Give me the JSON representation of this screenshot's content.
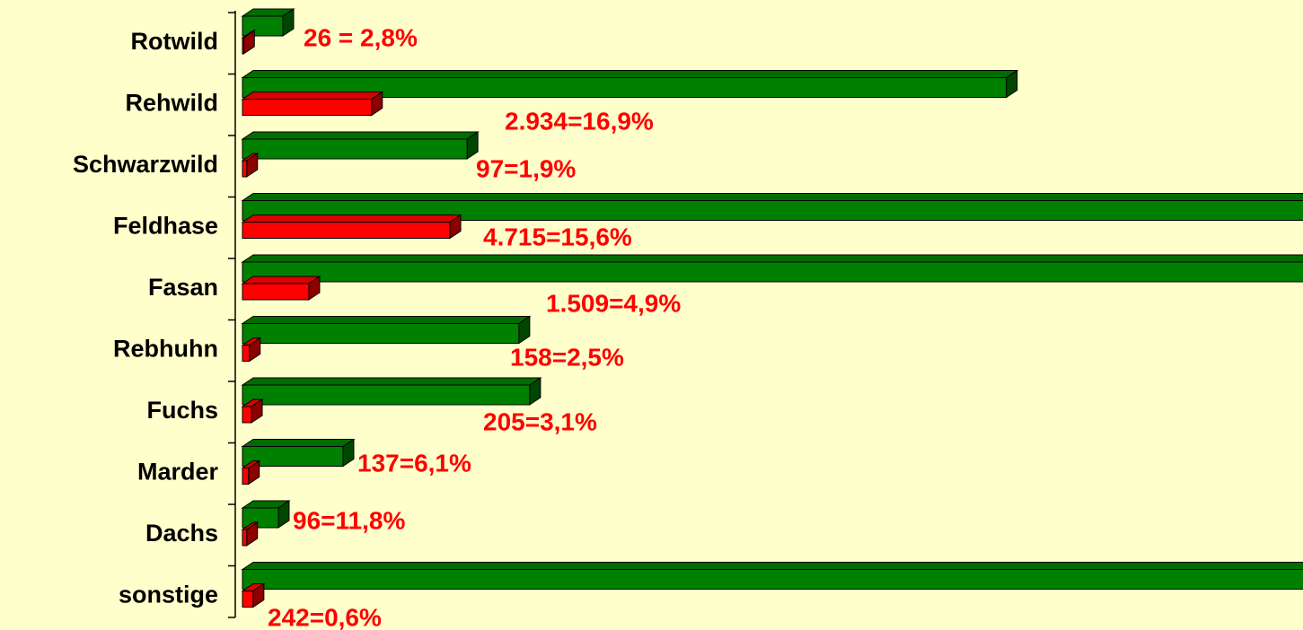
{
  "chart_data": {
    "type": "bar3d-horizontal",
    "categories": [
      "Rotwild",
      "Rehwild",
      "Schwarzwild",
      "Feldhase",
      "Fasan",
      "Rebhuhn",
      "Fuchs",
      "Marder",
      "Dachs",
      "sonstige"
    ],
    "series": [
      {
        "color": "#008000",
        "values": [
          918,
          17361,
          5105,
          30224,
          30796,
          6283,
          6528,
          2285,
          816,
          40333
        ]
      },
      {
        "color": "#ff0000",
        "values": [
          26,
          2934,
          97,
          4715,
          1509,
          158,
          205,
          137,
          96,
          242
        ],
        "value_labels": [
          "26 = 2,8%",
          "2.934=16,9%",
          "97=1,9%",
          "4.715=15,6%",
          "1.509=4,9%",
          "158=2,5%",
          "205=3,1%",
          "137=6,1%",
          "96=11,8%",
          "242=0,6%"
        ]
      }
    ],
    "xlim": [
      0,
      24000
    ]
  }
}
